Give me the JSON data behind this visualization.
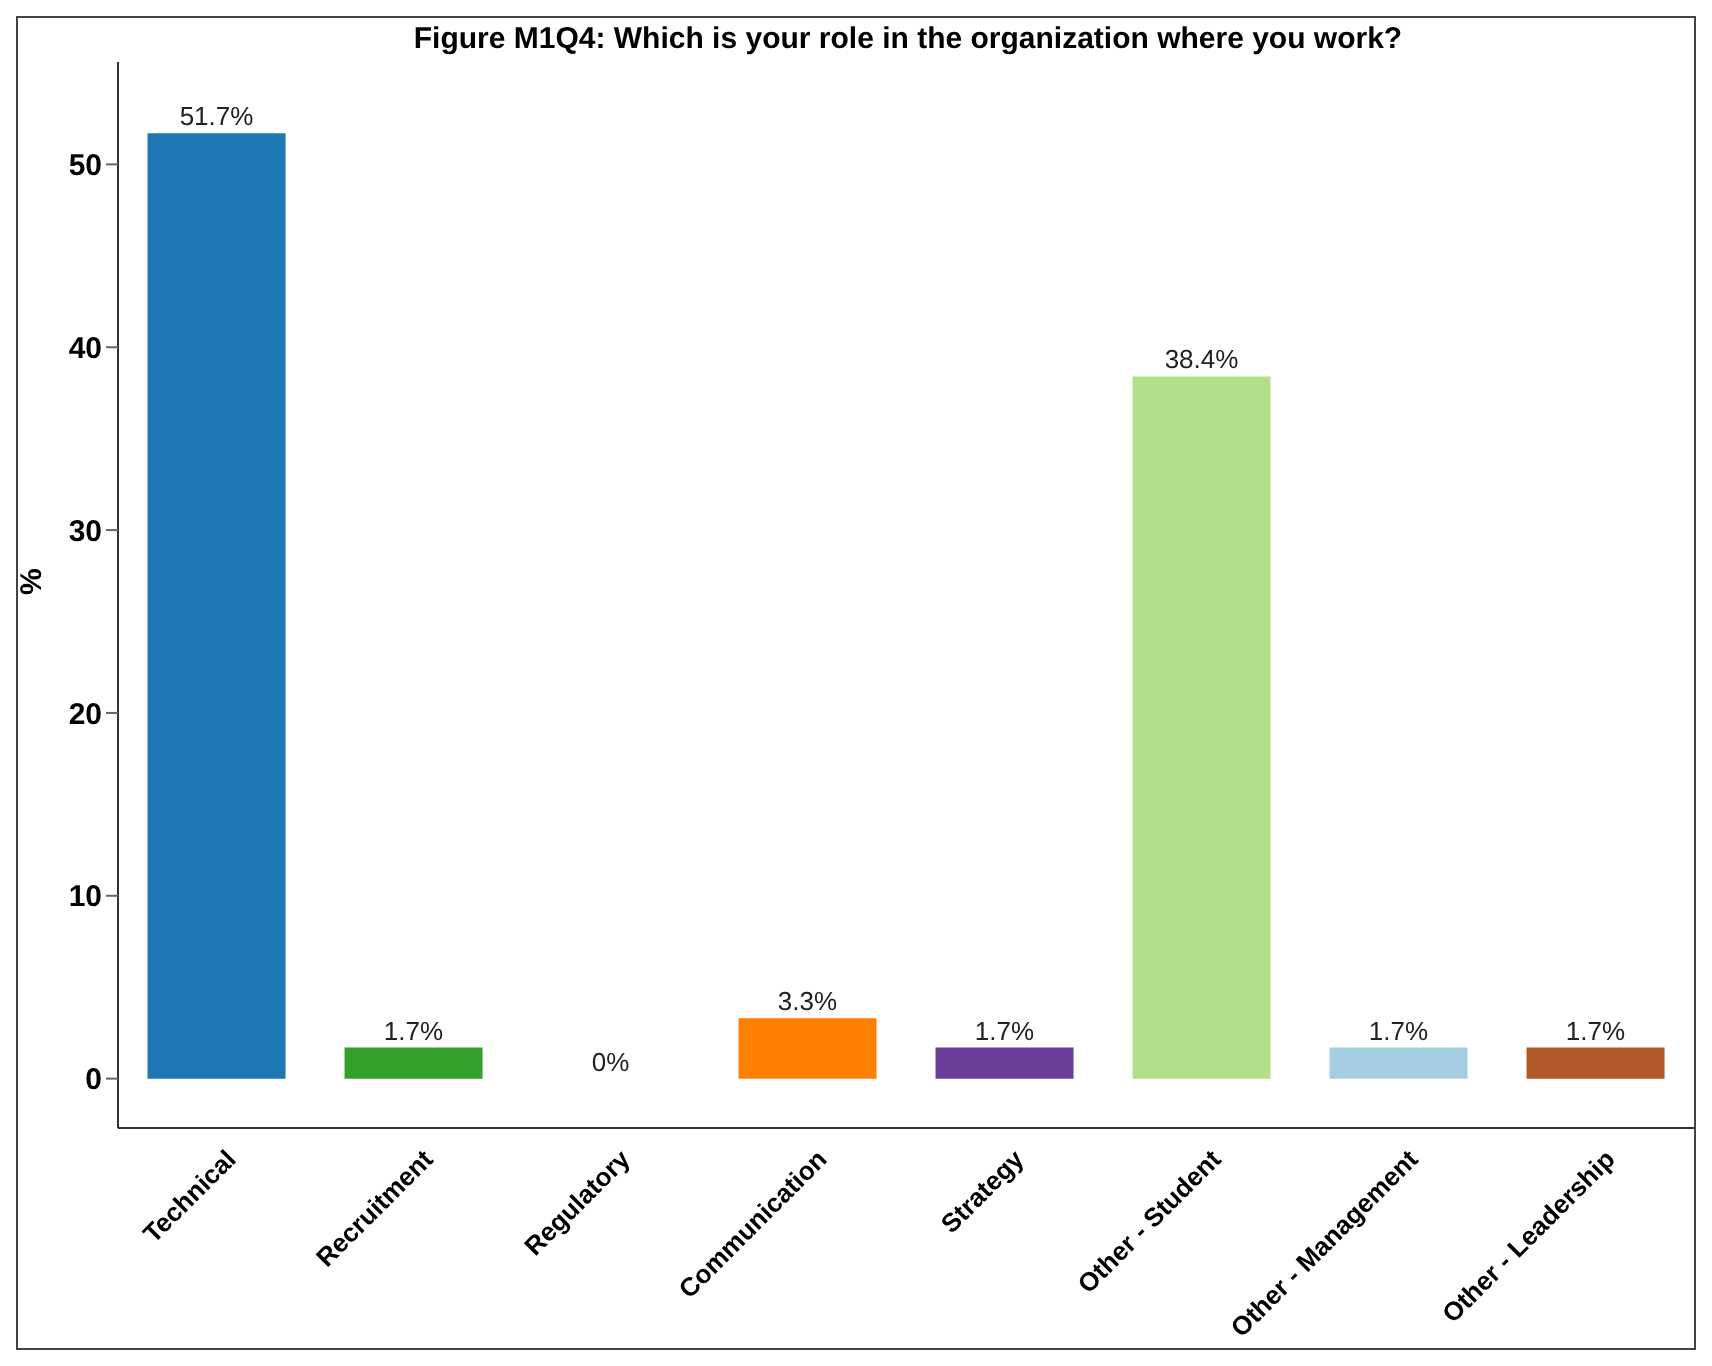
{
  "chart_data": {
    "type": "bar",
    "title": "Figure M1Q4: Which is your role in the organization where you work?",
    "ylabel": "%",
    "categories": [
      "Technical",
      "Recruitment",
      "Regulatory",
      "Communication",
      "Strategy",
      "Other - Student",
      "Other - Management",
      "Other - Leadership"
    ],
    "values": [
      51.7,
      1.7,
      0,
      3.3,
      1.7,
      38.4,
      1.7,
      1.7
    ],
    "value_labels": [
      "51.7%",
      "1.7%",
      "0%",
      "3.3%",
      "1.7%",
      "38.4%",
      "1.7%",
      "1.7%"
    ],
    "colors": [
      "#1f78b4",
      "#33a02c",
      "#e31a1c",
      "#ff7f00",
      "#6a3d9a",
      "#b2df8a",
      "#a6cee3",
      "#b15928"
    ],
    "ylim": [
      -2.7,
      55.6
    ],
    "yticks": [
      0,
      10,
      20,
      30,
      40,
      50
    ],
    "grid": false,
    "legend": false
  }
}
